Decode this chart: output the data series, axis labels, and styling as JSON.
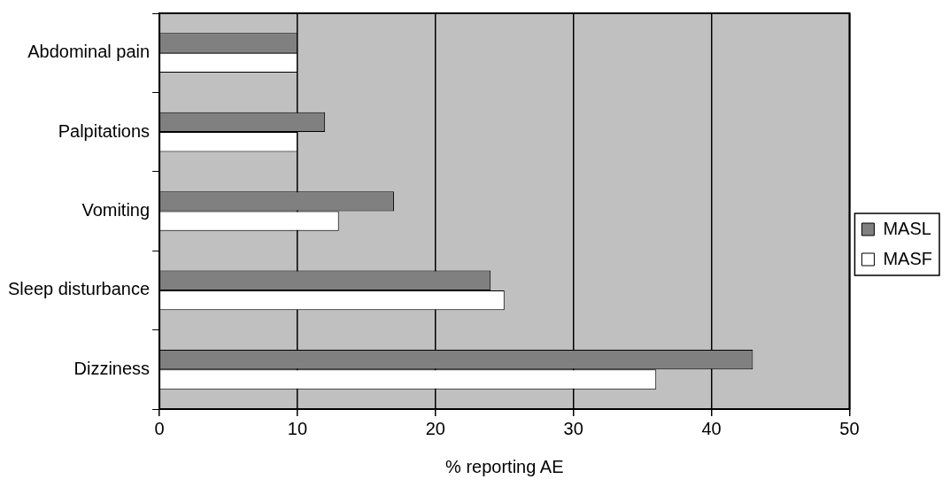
{
  "chart_data": {
    "type": "bar",
    "orientation": "horizontal",
    "xlabel": "% reporting AE",
    "categories": [
      "Abdominal pain",
      "Palpitations",
      "Vomiting",
      "Sleep disturbance",
      "Dizziness"
    ],
    "series": [
      {
        "name": "MASL",
        "color": "#808080",
        "values": [
          10,
          12,
          17,
          24,
          43
        ]
      },
      {
        "name": "MASF",
        "color": "#ffffff",
        "values": [
          10,
          10,
          13,
          25,
          36
        ]
      }
    ],
    "xlim": [
      0,
      50
    ],
    "xticks": [
      0,
      10,
      20,
      30,
      40,
      50
    ],
    "grid": "x",
    "legend": "right"
  }
}
